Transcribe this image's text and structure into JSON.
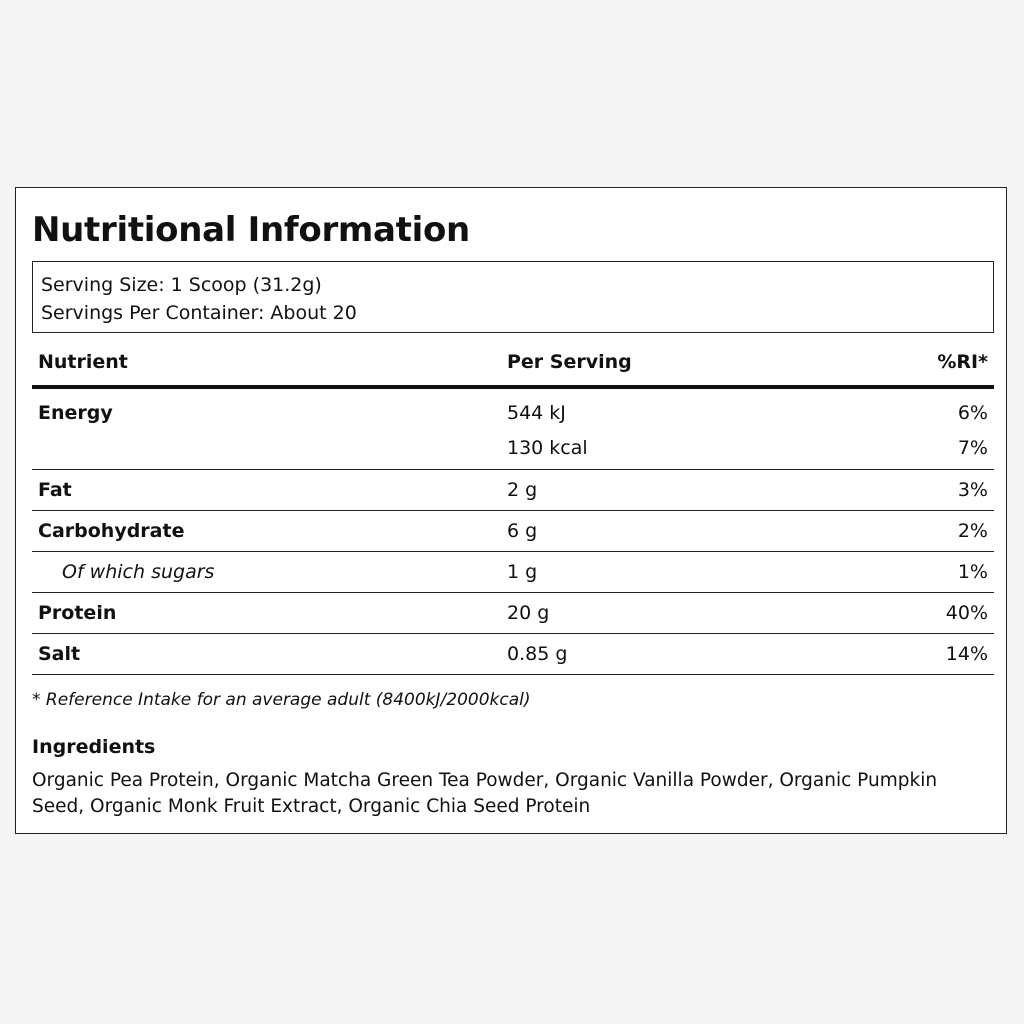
{
  "label": {
    "title": "Nutritional Information",
    "serving": {
      "size": "Serving Size: 1 Scoop (31.2g)",
      "per_container": "Servings Per Container: About 20"
    },
    "table": {
      "headers": {
        "nutrient": "Nutrient",
        "per_serving": "Per Serving",
        "ri": "%RI*"
      },
      "rows": [
        {
          "nutrient": "Energy",
          "per_serving": "544 kJ",
          "ri": "6%"
        },
        {
          "nutrient": "",
          "per_serving": "130 kcal",
          "ri": "7%"
        },
        {
          "nutrient": "Fat",
          "per_serving": "2 g",
          "ri": "3%"
        },
        {
          "nutrient": "Carbohydrate",
          "per_serving": "6 g",
          "ri": "2%"
        },
        {
          "nutrient": "Of which sugars",
          "per_serving": "1 g",
          "ri": "1%"
        },
        {
          "nutrient": "Protein",
          "per_serving": "20 g",
          "ri": "40%"
        },
        {
          "nutrient": "Salt",
          "per_serving": "0.85 g",
          "ri": "14%"
        }
      ]
    },
    "footnote": "* Reference Intake for an average adult (8400kJ/2000kcal)",
    "ingredients": {
      "heading": "Ingredients",
      "text": "Organic Pea Protein, Organic Matcha Green Tea Powder, Organic Vanilla Powder, Organic Pumpkin Seed, Organic Monk Fruit Extract, Organic Chia Seed Protein"
    }
  }
}
